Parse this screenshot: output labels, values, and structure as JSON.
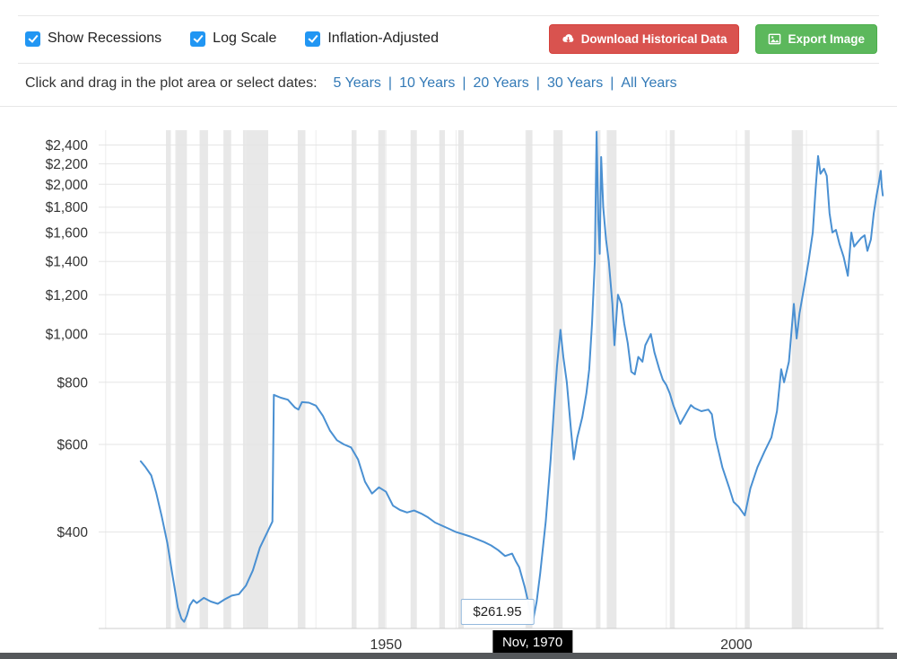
{
  "toolbar": {
    "checkboxes": [
      {
        "label": "Show Recessions",
        "checked": true
      },
      {
        "label": "Log Scale",
        "checked": true
      },
      {
        "label": "Inflation-Adjusted",
        "checked": true
      }
    ],
    "download_button": {
      "label": "Download Historical Data",
      "color": "#d9534f"
    },
    "export_button": {
      "label": "Export Image",
      "color": "#5cb85c"
    },
    "checkbox_color": "#2196f3"
  },
  "range_selector": {
    "prompt": "Click and drag in the plot area or select dates:",
    "options": [
      "5 Years",
      "10 Years",
      "20 Years",
      "30 Years",
      "All Years"
    ],
    "separator": "|",
    "link_color": "#337ab7"
  },
  "chart_data": {
    "type": "line",
    "title": "",
    "xlabel": "",
    "ylabel": "",
    "y_scale": "log",
    "xlim": [
      1909,
      2021
    ],
    "ylim": [
      256,
      2570
    ],
    "x_ticks": [
      1950,
      2000
    ],
    "y_ticks": [
      400,
      600,
      800,
      1000,
      1200,
      1400,
      1600,
      1800,
      2000,
      2200,
      2400
    ],
    "y_tick_labels": [
      "$400",
      "$600",
      "$800",
      "$1,000",
      "$1,200",
      "$1,400",
      "$1,600",
      "$1,800",
      "$2,000",
      "$2,200",
      "$2,400"
    ],
    "line_color": "#4a90d2",
    "band_color": "#e8e8e8",
    "grid": true,
    "x": [
      1915,
      1915.7,
      1916.5,
      1917.2,
      1918,
      1918.8,
      1919.5,
      1920.3,
      1920.8,
      1921.2,
      1921.6,
      1922,
      1922.5,
      1923,
      1924,
      1925,
      1926,
      1927,
      1928,
      1929,
      1930,
      1931,
      1932,
      1933,
      1933.8,
      1934,
      1934.5,
      1935,
      1936,
      1937,
      1937.5,
      1938,
      1939,
      1940,
      1941,
      1942,
      1943,
      1944,
      1945,
      1946,
      1947,
      1948,
      1949,
      1950,
      1951,
      1952,
      1953,
      1954,
      1955,
      1956,
      1957,
      1958,
      1959,
      1960,
      1961,
      1962,
      1963,
      1964,
      1965,
      1966,
      1967,
      1968,
      1968.5,
      1969,
      1969.8,
      1970.4,
      1970.9,
      1971.5,
      1972,
      1972.8,
      1973.5,
      1974,
      1974.4,
      1974.9,
      1975.3,
      1975.8,
      1976.4,
      1976.8,
      1977.3,
      1978,
      1978.6,
      1979,
      1979.4,
      1979.8,
      1980.05,
      1980.3,
      1980.5,
      1980.7,
      1981,
      1981.4,
      1981.8,
      1982.3,
      1982.6,
      1983.1,
      1983.6,
      1984,
      1984.5,
      1985,
      1985.5,
      1986,
      1986.6,
      1987,
      1987.8,
      1988.3,
      1989,
      1989.5,
      1990,
      1990.5,
      1991,
      1992,
      1993,
      1993.5,
      1994,
      1995,
      1996,
      1996.5,
      1997,
      1998,
      1999,
      1999.6,
      2000.3,
      2001.2,
      2002,
      2003,
      2004,
      2005,
      2005.8,
      2006.4,
      2006.8,
      2007.5,
      2008.2,
      2008.6,
      2009,
      2009.7,
      2010.3,
      2010.9,
      2011.3,
      2011.65,
      2012,
      2012.5,
      2012.9,
      2013.3,
      2013.7,
      2014.2,
      2014.7,
      2015.3,
      2015.9,
      2016.4,
      2016.8,
      2017.3,
      2017.8,
      2018.3,
      2018.7,
      2019.2,
      2019.6,
      2020,
      2020.3,
      2020.6,
      2020.75,
      2020.9
    ],
    "y": [
      555,
      540,
      520,
      480,
      430,
      380,
      330,
      282,
      268,
      264,
      272,
      285,
      292,
      288,
      295,
      290,
      287,
      293,
      298,
      300,
      312,
      335,
      372,
      398,
      420,
      755,
      750,
      745,
      738,
      712,
      705,
      730,
      728,
      718,
      685,
      640,
      612,
      600,
      592,
      560,
      505,
      478,
      492,
      482,
      452,
      443,
      438,
      442,
      436,
      428,
      418,
      412,
      406,
      400,
      396,
      392,
      387,
      382,
      376,
      368,
      358,
      362,
      350,
      340,
      310,
      285,
      262,
      290,
      330,
      420,
      560,
      720,
      860,
      1020,
      900,
      800,
      640,
      560,
      620,
      680,
      760,
      850,
      1050,
      1400,
      2550,
      1700,
      1450,
      2270,
      1800,
      1550,
      1400,
      1150,
      950,
      1200,
      1150,
      1050,
      960,
      840,
      830,
      900,
      880,
      950,
      1000,
      920,
      850,
      810,
      790,
      760,
      720,
      660,
      700,
      720,
      710,
      700,
      705,
      690,
      620,
      540,
      490,
      460,
      450,
      432,
      490,
      540,
      580,
      620,
      700,
      850,
      800,
      880,
      1150,
      980,
      1100,
      1250,
      1400,
      1600,
      1950,
      2280,
      2100,
      2150,
      2080,
      1750,
      1600,
      1620,
      1520,
      1430,
      1310,
      1600,
      1500,
      1530,
      1560,
      1580,
      1470,
      1550,
      1750,
      1900,
      2000,
      2130,
      1980,
      1900
    ],
    "recession_bands": [
      [
        1918.6,
        1919.3
      ],
      [
        1920.0,
        1921.6
      ],
      [
        1923.4,
        1924.6
      ],
      [
        1926.8,
        1927.9
      ],
      [
        1929.6,
        1933.2
      ],
      [
        1937.4,
        1938.5
      ],
      [
        1945.1,
        1945.8
      ],
      [
        1948.9,
        1949.9
      ],
      [
        1953.5,
        1954.4
      ],
      [
        1957.6,
        1958.4
      ],
      [
        1960.3,
        1961.1
      ],
      [
        1969.9,
        1970.9
      ],
      [
        1973.9,
        1975.2
      ],
      [
        1980.0,
        1980.6
      ],
      [
        1981.5,
        1982.9
      ],
      [
        1990.5,
        1991.2
      ],
      [
        2001.2,
        2001.9
      ],
      [
        2007.9,
        2009.5
      ],
      [
        2020.1,
        2020.4
      ]
    ],
    "tooltip": {
      "value": "$261.95",
      "date": "Nov, 1970",
      "x": 1970.9,
      "y": 261.95
    }
  }
}
